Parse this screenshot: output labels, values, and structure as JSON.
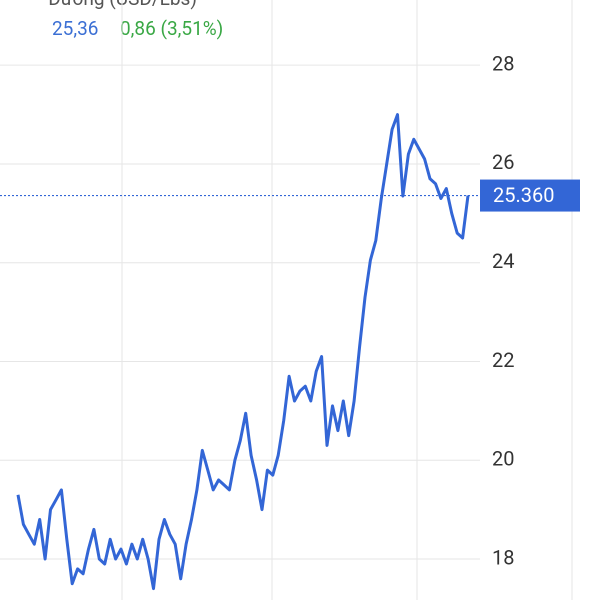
{
  "chart_data": {
    "type": "line",
    "title": "Đường (USD/Lbs)",
    "price_text": "25,36",
    "change_text": "0,86 (3,51%)",
    "color": "#3366d6",
    "ylim": [
      17.17,
      29.32
    ],
    "yticks": [
      18,
      20,
      22,
      24,
      26,
      28
    ],
    "grid": true,
    "last_price": {
      "value": 25.36,
      "label": "25.360"
    },
    "values": [
      19.3,
      18.7,
      18.5,
      18.3,
      18.8,
      18.0,
      19.0,
      19.2,
      19.4,
      18.4,
      17.5,
      17.8,
      17.7,
      18.2,
      18.6,
      18.0,
      17.9,
      18.4,
      18.0,
      18.2,
      17.9,
      18.3,
      18.0,
      18.4,
      18.0,
      17.4,
      18.4,
      18.8,
      18.5,
      18.3,
      17.6,
      18.3,
      18.8,
      19.4,
      20.2,
      19.8,
      19.4,
      19.6,
      19.5,
      19.4,
      20.0,
      20.4,
      20.95,
      20.1,
      19.6,
      19.0,
      19.8,
      19.7,
      20.1,
      20.8,
      21.7,
      21.2,
      21.4,
      21.5,
      21.2,
      21.8,
      22.1,
      20.3,
      21.1,
      20.6,
      21.2,
      20.5,
      21.2,
      22.3,
      23.3,
      24.05,
      24.45,
      25.3,
      26.0,
      26.7,
      27.0,
      25.35,
      26.2,
      26.5,
      26.3,
      26.1,
      25.7,
      25.6,
      25.3,
      25.5,
      25.0,
      24.6,
      24.5,
      25.36
    ]
  }
}
